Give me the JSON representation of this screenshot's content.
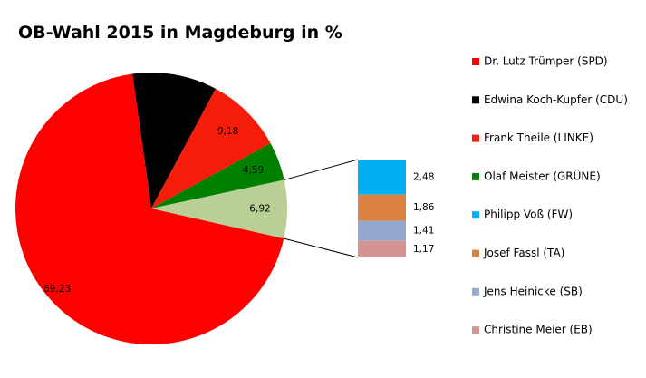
{
  "chart_data": {
    "type": "pie",
    "subtype": "bar-of-pie",
    "title": "OB-Wahl 2015 in Magdeburg in %",
    "legend_position": "right",
    "main_slices": [
      {
        "name": "Dr. Lutz Trümper (SPD)",
        "value": 69.23,
        "label": "69,23",
        "color": "#FF0000"
      },
      {
        "name": "Edwina Koch-Kupfer (CDU)",
        "value": 10.08,
        "label": "10,08",
        "color": "#000000"
      },
      {
        "name": "Frank Theile (LINKE)",
        "value": 9.18,
        "label": "9,18",
        "color": "#F61C0A"
      },
      {
        "name": "Olaf Meister (GRÜNE)",
        "value": 4.59,
        "label": "4,59",
        "color": "#008000"
      },
      {
        "name": "",
        "value": 6.92,
        "label": "6,92",
        "color": "#B9CF96"
      }
    ],
    "secondary_bar": [
      {
        "name": "Philipp Voß (FW)",
        "value": 2.48,
        "label": "2,48",
        "color": "#00B0F0"
      },
      {
        "name": "Josef Fassl (TA)",
        "value": 1.86,
        "label": "1,86",
        "color": "#DC8342"
      },
      {
        "name": "Jens Heinicke (SB)",
        "value": 1.41,
        "label": "1,41",
        "color": "#95A9D0"
      },
      {
        "name": "Christine Meier (EB)",
        "value": 1.17,
        "label": "1,17",
        "color": "#D49494"
      }
    ],
    "legend": [
      {
        "label": "Dr. Lutz Trümper (SPD)",
        "color": "#FF0000"
      },
      {
        "label": "Edwina Koch-Kupfer (CDU)",
        "color": "#000000"
      },
      {
        "label": "Frank Theile (LINKE)",
        "color": "#F61C0A"
      },
      {
        "label": "Olaf Meister (GRÜNE)",
        "color": "#008000"
      },
      {
        "label": "Philipp Voß (FW)",
        "color": "#00B0F0"
      },
      {
        "label": "Josef Fassl (TA)",
        "color": "#DC8342"
      },
      {
        "label": "Jens Heinicke (SB)",
        "color": "#95A9D0"
      },
      {
        "label": "Christine Meier (EB)",
        "color": "#D49494"
      }
    ]
  }
}
